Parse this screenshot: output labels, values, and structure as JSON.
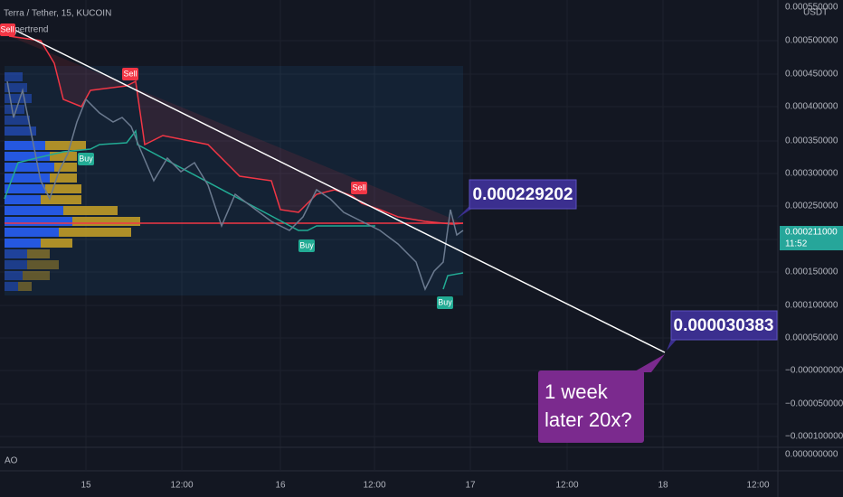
{
  "header": {
    "symbol": "Terra / Tether, 15, KUCOIN",
    "indicator": "Supertrend",
    "currency": "USDT"
  },
  "price_axis": [
    "0.000550000",
    "0.000500000",
    "0.000450000",
    "0.000400000",
    "0.000350000",
    "0.000300000",
    "0.000250000",
    "0.000150000",
    "0.000100000",
    "0.000050000",
    "−0.000000000",
    "−0.000050000",
    "−0.000100000"
  ],
  "current_price": {
    "price": "0.000211000",
    "countdown": "11:52"
  },
  "time_axis": [
    "15",
    "12:00",
    "16",
    "12:00",
    "17",
    "12:00",
    "18",
    "12:00"
  ],
  "signals": [
    "Sell",
    "Sell",
    "Sell",
    "Buy",
    "Buy",
    "Buy"
  ],
  "annotations": [
    "0.000229202",
    "0.000030383",
    "1 week",
    "later 20x?"
  ],
  "ao_pane": {
    "label": "AO",
    "axis": "0.000000000"
  }
}
